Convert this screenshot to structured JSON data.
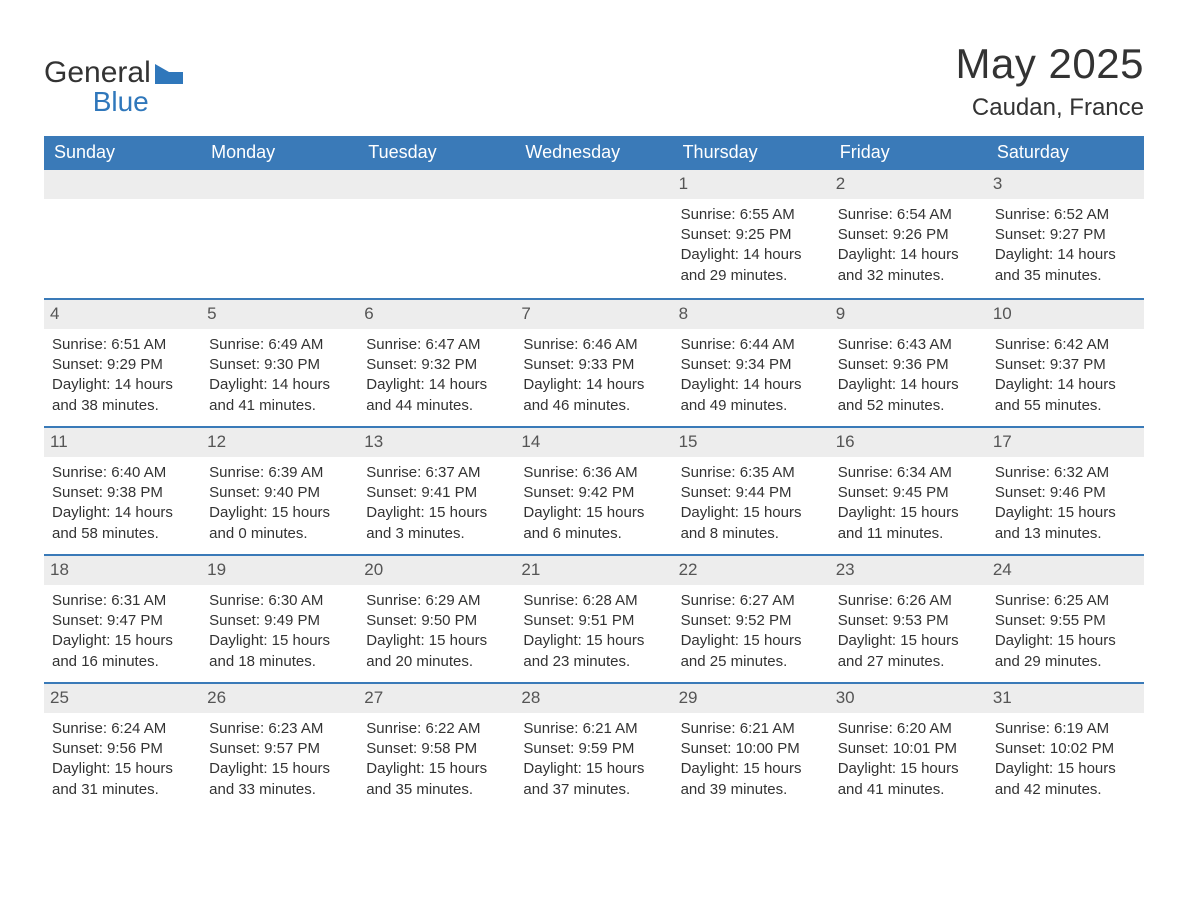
{
  "brand": {
    "name_top": "General",
    "name_bottom": "Blue"
  },
  "title": "May 2025",
  "location": "Caudan, France",
  "colors": {
    "header_bg": "#3a7ab8",
    "header_text": "#ffffff",
    "border": "#3a7ab8",
    "daynum_bg": "#ededed",
    "daynum_text": "#555555",
    "body_text": "#333333",
    "logo_blue": "#2f77bb",
    "background": "#ffffff"
  },
  "weekdays": [
    "Sunday",
    "Monday",
    "Tuesday",
    "Wednesday",
    "Thursday",
    "Friday",
    "Saturday"
  ],
  "weeks": [
    [
      {
        "empty": true
      },
      {
        "empty": true
      },
      {
        "empty": true
      },
      {
        "empty": true
      },
      {
        "n": "1",
        "sunrise": "Sunrise: 6:55 AM",
        "sunset": "Sunset: 9:25 PM",
        "dl1": "Daylight: 14 hours",
        "dl2": "and 29 minutes."
      },
      {
        "n": "2",
        "sunrise": "Sunrise: 6:54 AM",
        "sunset": "Sunset: 9:26 PM",
        "dl1": "Daylight: 14 hours",
        "dl2": "and 32 minutes."
      },
      {
        "n": "3",
        "sunrise": "Sunrise: 6:52 AM",
        "sunset": "Sunset: 9:27 PM",
        "dl1": "Daylight: 14 hours",
        "dl2": "and 35 minutes."
      }
    ],
    [
      {
        "n": "4",
        "sunrise": "Sunrise: 6:51 AM",
        "sunset": "Sunset: 9:29 PM",
        "dl1": "Daylight: 14 hours",
        "dl2": "and 38 minutes."
      },
      {
        "n": "5",
        "sunrise": "Sunrise: 6:49 AM",
        "sunset": "Sunset: 9:30 PM",
        "dl1": "Daylight: 14 hours",
        "dl2": "and 41 minutes."
      },
      {
        "n": "6",
        "sunrise": "Sunrise: 6:47 AM",
        "sunset": "Sunset: 9:32 PM",
        "dl1": "Daylight: 14 hours",
        "dl2": "and 44 minutes."
      },
      {
        "n": "7",
        "sunrise": "Sunrise: 6:46 AM",
        "sunset": "Sunset: 9:33 PM",
        "dl1": "Daylight: 14 hours",
        "dl2": "and 46 minutes."
      },
      {
        "n": "8",
        "sunrise": "Sunrise: 6:44 AM",
        "sunset": "Sunset: 9:34 PM",
        "dl1": "Daylight: 14 hours",
        "dl2": "and 49 minutes."
      },
      {
        "n": "9",
        "sunrise": "Sunrise: 6:43 AM",
        "sunset": "Sunset: 9:36 PM",
        "dl1": "Daylight: 14 hours",
        "dl2": "and 52 minutes."
      },
      {
        "n": "10",
        "sunrise": "Sunrise: 6:42 AM",
        "sunset": "Sunset: 9:37 PM",
        "dl1": "Daylight: 14 hours",
        "dl2": "and 55 minutes."
      }
    ],
    [
      {
        "n": "11",
        "sunrise": "Sunrise: 6:40 AM",
        "sunset": "Sunset: 9:38 PM",
        "dl1": "Daylight: 14 hours",
        "dl2": "and 58 minutes."
      },
      {
        "n": "12",
        "sunrise": "Sunrise: 6:39 AM",
        "sunset": "Sunset: 9:40 PM",
        "dl1": "Daylight: 15 hours",
        "dl2": "and 0 minutes."
      },
      {
        "n": "13",
        "sunrise": "Sunrise: 6:37 AM",
        "sunset": "Sunset: 9:41 PM",
        "dl1": "Daylight: 15 hours",
        "dl2": "and 3 minutes."
      },
      {
        "n": "14",
        "sunrise": "Sunrise: 6:36 AM",
        "sunset": "Sunset: 9:42 PM",
        "dl1": "Daylight: 15 hours",
        "dl2": "and 6 minutes."
      },
      {
        "n": "15",
        "sunrise": "Sunrise: 6:35 AM",
        "sunset": "Sunset: 9:44 PM",
        "dl1": "Daylight: 15 hours",
        "dl2": "and 8 minutes."
      },
      {
        "n": "16",
        "sunrise": "Sunrise: 6:34 AM",
        "sunset": "Sunset: 9:45 PM",
        "dl1": "Daylight: 15 hours",
        "dl2": "and 11 minutes."
      },
      {
        "n": "17",
        "sunrise": "Sunrise: 6:32 AM",
        "sunset": "Sunset: 9:46 PM",
        "dl1": "Daylight: 15 hours",
        "dl2": "and 13 minutes."
      }
    ],
    [
      {
        "n": "18",
        "sunrise": "Sunrise: 6:31 AM",
        "sunset": "Sunset: 9:47 PM",
        "dl1": "Daylight: 15 hours",
        "dl2": "and 16 minutes."
      },
      {
        "n": "19",
        "sunrise": "Sunrise: 6:30 AM",
        "sunset": "Sunset: 9:49 PM",
        "dl1": "Daylight: 15 hours",
        "dl2": "and 18 minutes."
      },
      {
        "n": "20",
        "sunrise": "Sunrise: 6:29 AM",
        "sunset": "Sunset: 9:50 PM",
        "dl1": "Daylight: 15 hours",
        "dl2": "and 20 minutes."
      },
      {
        "n": "21",
        "sunrise": "Sunrise: 6:28 AM",
        "sunset": "Sunset: 9:51 PM",
        "dl1": "Daylight: 15 hours",
        "dl2": "and 23 minutes."
      },
      {
        "n": "22",
        "sunrise": "Sunrise: 6:27 AM",
        "sunset": "Sunset: 9:52 PM",
        "dl1": "Daylight: 15 hours",
        "dl2": "and 25 minutes."
      },
      {
        "n": "23",
        "sunrise": "Sunrise: 6:26 AM",
        "sunset": "Sunset: 9:53 PM",
        "dl1": "Daylight: 15 hours",
        "dl2": "and 27 minutes."
      },
      {
        "n": "24",
        "sunrise": "Sunrise: 6:25 AM",
        "sunset": "Sunset: 9:55 PM",
        "dl1": "Daylight: 15 hours",
        "dl2": "and 29 minutes."
      }
    ],
    [
      {
        "n": "25",
        "sunrise": "Sunrise: 6:24 AM",
        "sunset": "Sunset: 9:56 PM",
        "dl1": "Daylight: 15 hours",
        "dl2": "and 31 minutes."
      },
      {
        "n": "26",
        "sunrise": "Sunrise: 6:23 AM",
        "sunset": "Sunset: 9:57 PM",
        "dl1": "Daylight: 15 hours",
        "dl2": "and 33 minutes."
      },
      {
        "n": "27",
        "sunrise": "Sunrise: 6:22 AM",
        "sunset": "Sunset: 9:58 PM",
        "dl1": "Daylight: 15 hours",
        "dl2": "and 35 minutes."
      },
      {
        "n": "28",
        "sunrise": "Sunrise: 6:21 AM",
        "sunset": "Sunset: 9:59 PM",
        "dl1": "Daylight: 15 hours",
        "dl2": "and 37 minutes."
      },
      {
        "n": "29",
        "sunrise": "Sunrise: 6:21 AM",
        "sunset": "Sunset: 10:00 PM",
        "dl1": "Daylight: 15 hours",
        "dl2": "and 39 minutes."
      },
      {
        "n": "30",
        "sunrise": "Sunrise: 6:20 AM",
        "sunset": "Sunset: 10:01 PM",
        "dl1": "Daylight: 15 hours",
        "dl2": "and 41 minutes."
      },
      {
        "n": "31",
        "sunrise": "Sunrise: 6:19 AM",
        "sunset": "Sunset: 10:02 PM",
        "dl1": "Daylight: 15 hours",
        "dl2": "and 42 minutes."
      }
    ]
  ]
}
